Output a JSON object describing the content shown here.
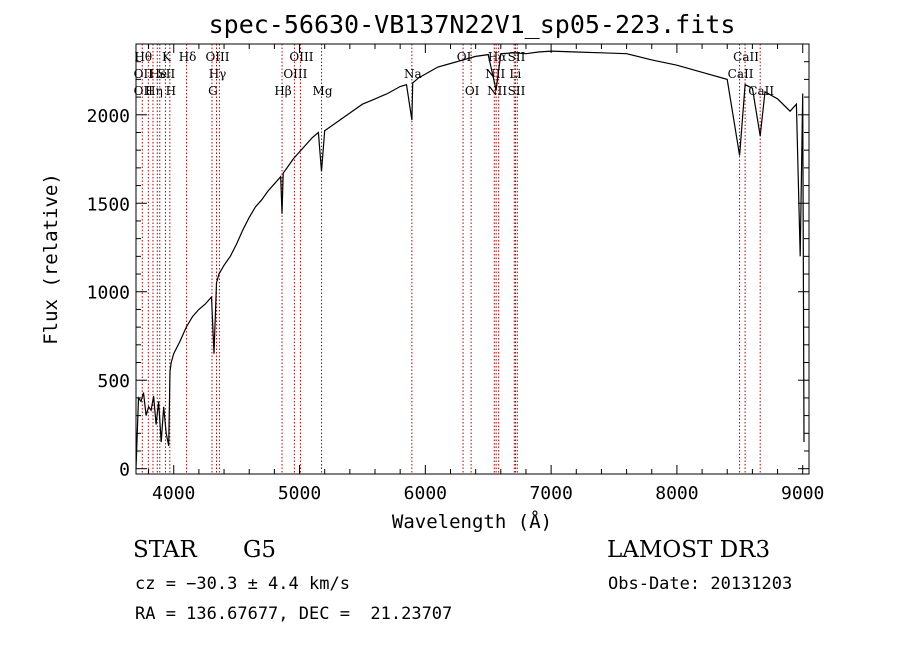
{
  "chart_data": {
    "type": "line",
    "title": "spec-56630-VB137N22V1_sp05-223.fits",
    "xlabel": "Wavelength (Å)",
    "ylabel": "Flux (relative)",
    "xlim": [
      3700,
      9050
    ],
    "ylim": [
      -30,
      2400
    ],
    "x_ticks": [
      4000,
      5000,
      6000,
      7000,
      8000,
      9000
    ],
    "y_ticks": [
      0,
      500,
      1000,
      1500,
      2000
    ],
    "grid": false,
    "series": [
      {
        "x": [
          3700,
          3720,
          3740,
          3760,
          3780,
          3800,
          3820,
          3840,
          3860,
          3880,
          3900,
          3920,
          3940,
          3960,
          3970,
          3980,
          4000,
          4050,
          4100,
          4150,
          4200,
          4250,
          4300,
          4320,
          4340,
          4360,
          4400,
          4450,
          4500,
          4550,
          4600,
          4650,
          4700,
          4750,
          4800,
          4850,
          4861,
          4870,
          4900,
          4950,
          5000,
          5050,
          5100,
          5150,
          5175,
          5200,
          5300,
          5400,
          5500,
          5600,
          5700,
          5800,
          5850,
          5893,
          5900,
          5950,
          6000,
          6100,
          6200,
          6300,
          6400,
          6500,
          6563,
          6600,
          6700,
          6800,
          6900,
          7000,
          7200,
          7400,
          7600,
          7800,
          8000,
          8200,
          8400,
          8498,
          8542,
          8600,
          8662,
          8700,
          8800,
          8900,
          8950,
          8980,
          9000,
          9010
        ],
        "y": [
          0,
          400,
          380,
          430,
          300,
          350,
          330,
          410,
          250,
          380,
          150,
          350,
          200,
          130,
          550,
          600,
          650,
          720,
          800,
          860,
          900,
          930,
          970,
          650,
          1050,
          1100,
          1150,
          1200,
          1270,
          1350,
          1420,
          1480,
          1520,
          1570,
          1610,
          1650,
          1440,
          1670,
          1700,
          1750,
          1790,
          1830,
          1870,
          1900,
          1680,
          1910,
          1960,
          2010,
          2060,
          2090,
          2120,
          2160,
          2170,
          1970,
          2180,
          2210,
          2230,
          2270,
          2290,
          2310,
          2330,
          2340,
          2140,
          2345,
          2350,
          2345,
          2355,
          2360,
          2355,
          2350,
          2345,
          2310,
          2280,
          2240,
          2200,
          1770,
          2170,
          2150,
          1880,
          2130,
          2090,
          2020,
          2060,
          1200,
          2120,
          150
        ]
      }
    ],
    "lines": [
      {
        "x": 3750,
        "labels": [
          {
            "t": "Hθ",
            "r": 0
          },
          {
            "t": "OII",
            "r": 1
          },
          {
            "t": "OII",
            "r": 2
          }
        ]
      },
      {
        "x": 3798,
        "labels": []
      },
      {
        "x": 3835,
        "labels": [
          {
            "t": "Hη",
            "r": 2
          }
        ]
      },
      {
        "x": 3869,
        "labels": [
          {
            "t": "He",
            "r": 1
          }
        ]
      },
      {
        "x": 3889,
        "labels": []
      },
      {
        "x": 3934,
        "labels": [
          {
            "t": "K",
            "r": 0
          },
          {
            "t": "SII",
            "r": 1
          }
        ]
      },
      {
        "x": 3969,
        "labels": [
          {
            "t": "H",
            "r": 2
          }
        ]
      },
      {
        "x": 4102,
        "labels": [
          {
            "t": "Hδ",
            "r": 0
          }
        ]
      },
      {
        "x": 4304,
        "labels": [
          {
            "t": "G",
            "r": 2
          }
        ]
      },
      {
        "x": 4340,
        "labels": [
          {
            "t": "OIII",
            "r": 0
          },
          {
            "t": "Hγ",
            "r": 1
          }
        ]
      },
      {
        "x": 4363,
        "labels": []
      },
      {
        "x": 4861,
        "labels": [
          {
            "t": "Hβ",
            "r": 2
          }
        ]
      },
      {
        "x": 4959,
        "labels": [
          {
            "t": "OIII",
            "r": 1
          }
        ]
      },
      {
        "x": 5007,
        "labels": [
          {
            "t": "OIII",
            "r": 0
          }
        ]
      },
      {
        "x": 5175,
        "labels": [
          {
            "t": "Mg",
            "r": 2
          }
        ]
      },
      {
        "x": 5893,
        "labels": [
          {
            "t": "Na",
            "r": 1
          }
        ]
      },
      {
        "x": 6300,
        "labels": [
          {
            "t": "OI",
            "r": 0
          }
        ]
      },
      {
        "x": 6364,
        "labels": [
          {
            "t": "OI",
            "r": 2
          }
        ]
      },
      {
        "x": 6548,
        "labels": [
          {
            "t": "NII",
            "r": 1
          }
        ]
      },
      {
        "x": 6563,
        "labels": [
          {
            "t": "Hα",
            "r": 0
          },
          {
            "t": "NII",
            "r": 2
          }
        ]
      },
      {
        "x": 6583,
        "labels": []
      },
      {
        "x": 6707,
        "labels": [
          {
            "t": "Li",
            "r": 1
          }
        ]
      },
      {
        "x": 6717,
        "labels": [
          {
            "t": "SII",
            "r": 0
          },
          {
            "t": "SII",
            "r": 2
          }
        ]
      },
      {
        "x": 6731,
        "labels": []
      },
      {
        "x": 8498,
        "labels": [
          {
            "t": "CaII",
            "r": 1
          }
        ]
      },
      {
        "x": 8542,
        "labels": [
          {
            "t": "CaII",
            "r": 0
          }
        ]
      },
      {
        "x": 8662,
        "labels": [
          {
            "t": "CaII",
            "r": 2
          }
        ]
      }
    ]
  },
  "info": {
    "object_class": "STAR",
    "subclass": "G5",
    "survey": "LAMOST DR3",
    "redshift": "cz = −30.3 ± 4.4 km/s",
    "obs_date": "Obs-Date: 20131203",
    "coords": "RA = 136.67677, DEC =  21.23707"
  },
  "colors": {
    "spectrum": "#000000",
    "line_markers": "#b30000"
  }
}
